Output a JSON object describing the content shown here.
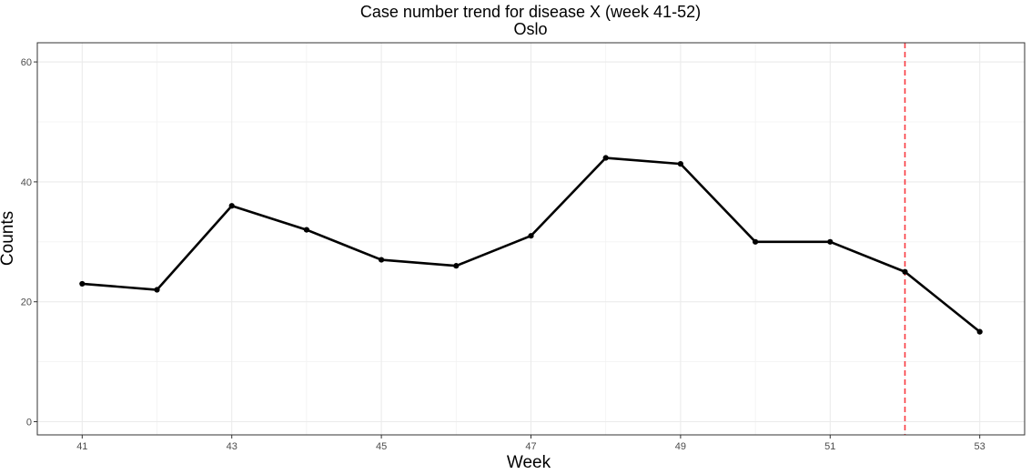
{
  "chart_data": {
    "type": "line",
    "title": "Case number trend for disease X (week 41-52)",
    "subtitle": "Oslo",
    "xlabel": "Week",
    "ylabel": "Counts",
    "xlim": [
      40.4,
      53.6
    ],
    "ylim": [
      -2.2,
      63.2
    ],
    "x_ticks": [
      41,
      43,
      45,
      47,
      49,
      51,
      53
    ],
    "y_ticks": [
      0,
      20,
      40,
      60
    ],
    "grid": true,
    "legend": "none",
    "series": [
      {
        "x": [
          41,
          42,
          43,
          44,
          45,
          46,
          47,
          48,
          49,
          50,
          51,
          52,
          53
        ],
        "values": [
          23,
          22,
          36,
          32,
          27,
          26,
          31,
          44,
          43,
          30,
          30,
          25,
          15
        ],
        "color": "#000000"
      }
    ],
    "reference_line": {
      "x": 52,
      "style": "dashed",
      "color": "#f8383f"
    }
  }
}
